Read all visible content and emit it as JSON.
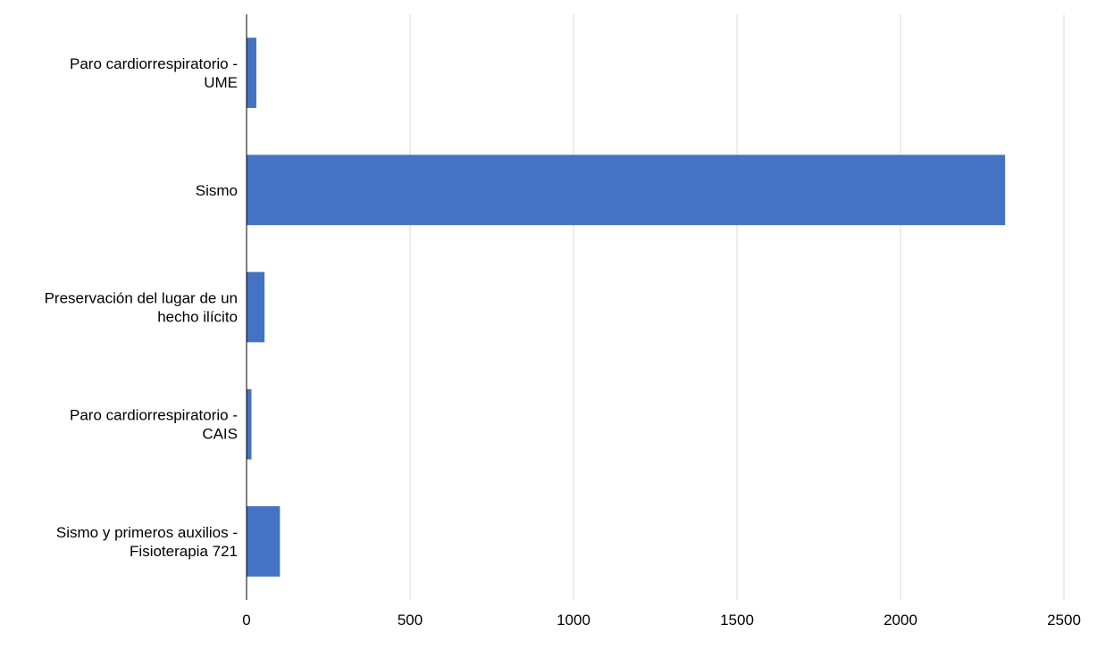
{
  "chart_data": {
    "type": "bar",
    "orientation": "horizontal",
    "categories": [
      [
        "Paro cardiorrespiratorio -",
        "UME"
      ],
      [
        "Sismo"
      ],
      [
        "Preservación del lugar de un",
        "hecho ilícito"
      ],
      [
        "Paro cardiorrespiratorio -",
        "CAIS"
      ],
      [
        "Sismo y primeros auxilios -",
        "Fisioterapia 721"
      ]
    ],
    "values": [
      30,
      2320,
      55,
      15,
      102
    ],
    "title": "",
    "xlabel": "",
    "ylabel": "",
    "xlim": [
      0,
      2500
    ],
    "x_ticks": [
      0,
      500,
      1000,
      1500,
      2000,
      2500
    ],
    "x_tick_labels": [
      "0",
      "500",
      "1000",
      "1500",
      "2000",
      "2500"
    ],
    "grid": "vertical",
    "legend": "none",
    "colors": {
      "bar": "#4472C4",
      "grid": "#D9D9D9",
      "axis": "#000000"
    }
  }
}
